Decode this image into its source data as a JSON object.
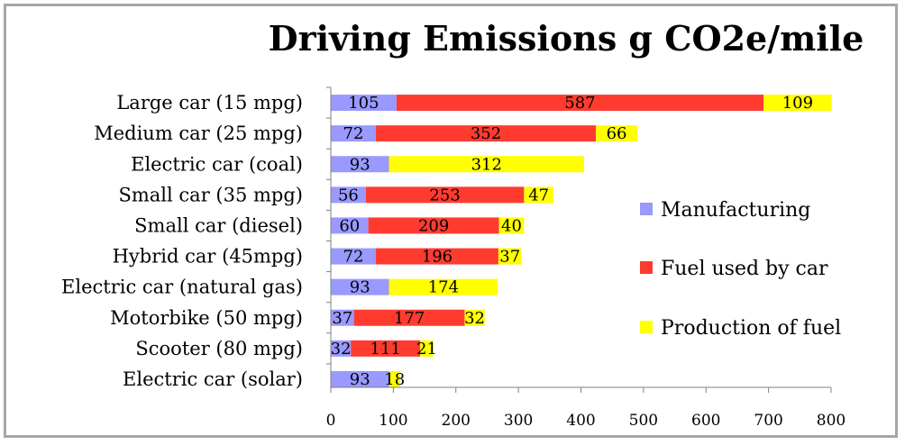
{
  "chart_data": {
    "type": "bar",
    "orientation": "horizontal",
    "stacked": true,
    "title": "Driving Emissions g CO2e/mile",
    "xlabel": "",
    "ylabel": "",
    "xlim": [
      0,
      800
    ],
    "xticks": [
      0,
      100,
      200,
      300,
      400,
      500,
      600,
      700,
      800
    ],
    "categories": [
      "Large car (15 mpg)",
      "Medium car (25 mpg)",
      "Electric car (coal)",
      "Small car (35 mpg)",
      "Small car (diesel)",
      "Hybrid car (45mpg)",
      "Electric car (natural gas)",
      "Motorbike (50 mpg)",
      "Scooter (80 mpg)",
      "Electric car (solar)"
    ],
    "series": [
      {
        "name": "Manufacturing",
        "color": "#9999ff",
        "values": [
          105,
          72,
          93,
          56,
          60,
          72,
          93,
          37,
          32,
          93
        ]
      },
      {
        "name": "Fuel used by car",
        "color": "#ff3b30",
        "values": [
          587,
          352,
          null,
          253,
          209,
          196,
          null,
          177,
          111,
          null
        ]
      },
      {
        "name": "Production of fuel",
        "color": "#ffff00",
        "values": [
          109,
          66,
          312,
          47,
          40,
          37,
          174,
          32,
          21,
          18
        ]
      }
    ],
    "legend_position": "right",
    "grid": false
  }
}
